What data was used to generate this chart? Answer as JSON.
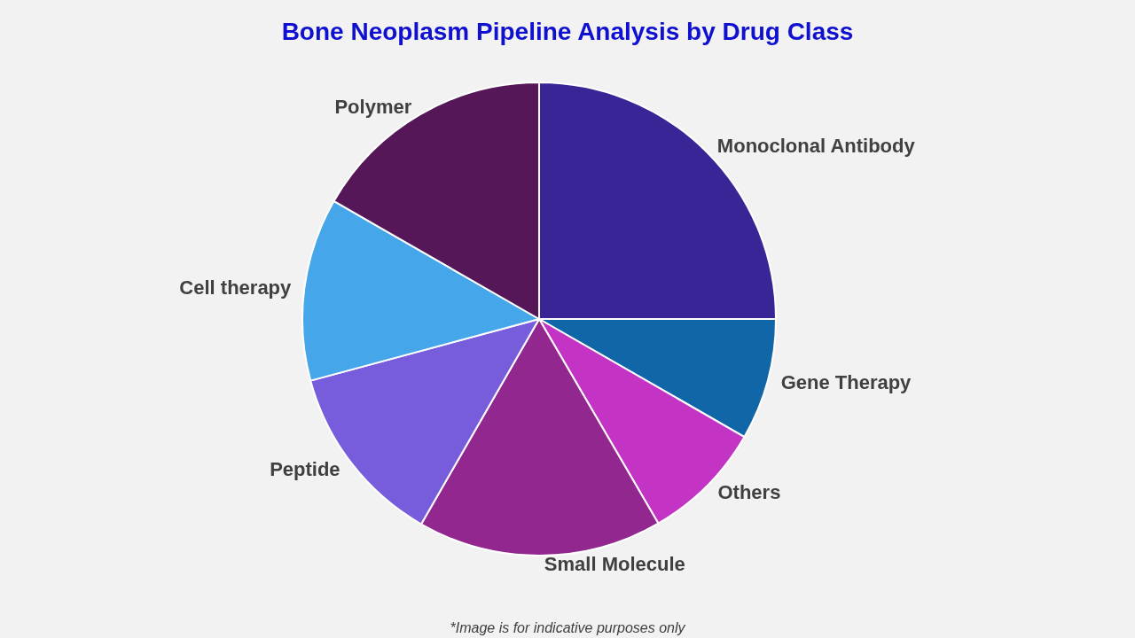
{
  "chart_data": {
    "type": "pie",
    "title": "Bone Neoplasm Pipeline Analysis by Drug Class",
    "categories": [
      "Monoclonal Antibody",
      "Gene Therapy",
      "Others",
      "Small Molecule",
      "Peptide",
      "Cell therapy",
      "Polymer"
    ],
    "values": [
      25,
      8.3,
      8.3,
      16.7,
      12.5,
      12.5,
      16.7
    ],
    "colors": [
      "#3a2596",
      "#1166a8",
      "#c434c4",
      "#92278f",
      "#775ddb",
      "#45a7ea",
      "#561758"
    ],
    "annotations": [
      "*Image is for indicative purposes only"
    ],
    "legend": false
  }
}
